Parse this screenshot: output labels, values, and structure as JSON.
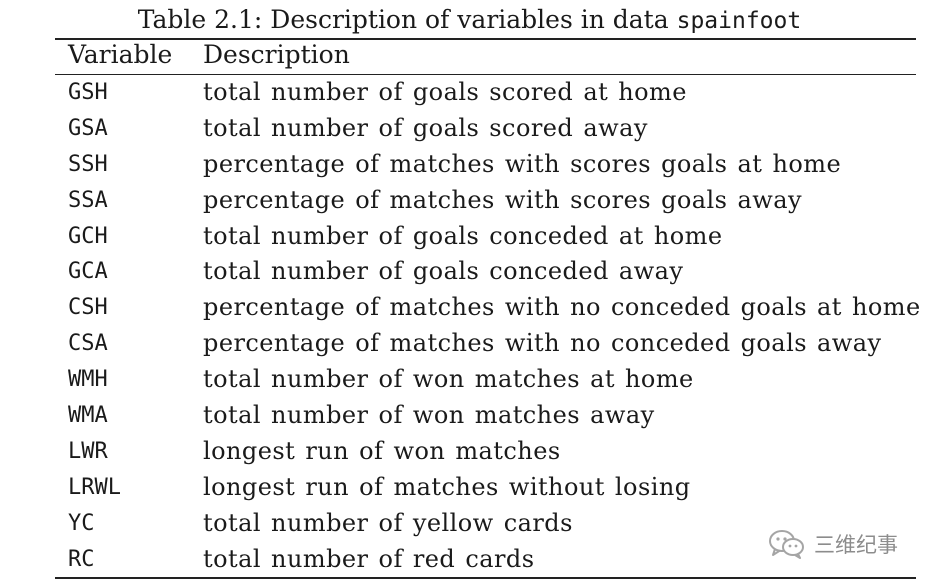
{
  "table": {
    "caption_prefix": "Table 2.1: Description of variables in data",
    "caption_dataset": "spainfoot",
    "headers": {
      "variable": "Variable",
      "description": "Description"
    },
    "rows": [
      {
        "variable": "GSH",
        "description": "total number of goals scored at home"
      },
      {
        "variable": "GSA",
        "description": "total number of goals scored away"
      },
      {
        "variable": "SSH",
        "description": "percentage of matches with scores goals at home"
      },
      {
        "variable": "SSA",
        "description": "percentage of matches with scores goals away"
      },
      {
        "variable": "GCH",
        "description": "total number of goals conceded at home"
      },
      {
        "variable": "GCA",
        "description": "total number of goals conceded away"
      },
      {
        "variable": "CSH",
        "description": "percentage of matches with no conceded goals at home"
      },
      {
        "variable": "CSA",
        "description": "percentage of matches with no conceded goals away"
      },
      {
        "variable": "WMH",
        "description": "total number of won matches at home"
      },
      {
        "variable": "WMA",
        "description": "total number of won matches away"
      },
      {
        "variable": "LWR",
        "description": "longest run of won matches"
      },
      {
        "variable": "LRWL",
        "description": "longest run of matches without losing"
      },
      {
        "variable": "YC",
        "description": "total number of yellow cards"
      },
      {
        "variable": "RC",
        "description": "total number of red cards"
      }
    ]
  },
  "watermark": {
    "icon": "wechat-icon",
    "text": "三维纪事"
  }
}
